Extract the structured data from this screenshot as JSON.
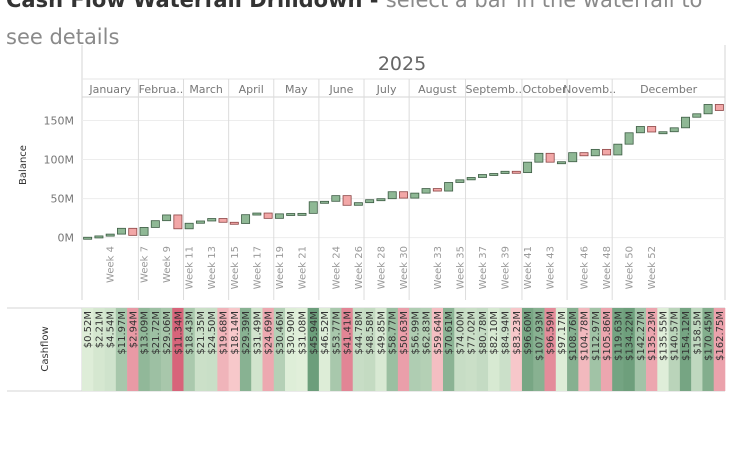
{
  "header": {
    "title_bold": "Cash Flow Waterfall Drilldown - ",
    "title_light": "select a bar in the waterfall to",
    "title_line2": "see details"
  },
  "colors": {
    "positive": "#8fb895",
    "negative": "#f2a7a7",
    "positive_stroke": "#3d5c44",
    "negative_stroke": "#8c4545"
  },
  "chart_data": {
    "type": "waterfall",
    "year": "2025",
    "ylabel": "Balance",
    "ylim": [
      -3,
      180
    ],
    "yticks": [
      {
        "value": 0,
        "label": "0M"
      },
      {
        "value": 50,
        "label": "50M"
      },
      {
        "value": 100,
        "label": "100M"
      },
      {
        "value": 150,
        "label": "150M"
      }
    ],
    "months": [
      "January",
      "Februa..",
      "March",
      "April",
      "May",
      "June",
      "July",
      "August",
      "Septemb..",
      "October",
      "Novemb..",
      "December"
    ],
    "cashflow_label": "Cashflow",
    "weeks": [
      {
        "week": 2,
        "month": 0,
        "label": "",
        "balance": 0.52,
        "cf_label": "$0.52M"
      },
      {
        "week": 3,
        "month": 0,
        "label": "",
        "balance": 2.21,
        "cf_label": "$2.21M"
      },
      {
        "week": 4,
        "month": 0,
        "label": "Week 4",
        "balance": 4.54,
        "cf_label": "$4.54M"
      },
      {
        "week": 5,
        "month": 0,
        "label": "",
        "balance": 11.97,
        "cf_label": "$11.97M"
      },
      {
        "week": 6,
        "month": 0,
        "label": "",
        "balance": 2.94,
        "cf_label": "$2.94M"
      },
      {
        "week": 7,
        "month": 1,
        "label": "Week 7",
        "balance": 13.09,
        "cf_label": "$13.09M"
      },
      {
        "week": 8,
        "month": 1,
        "label": "",
        "balance": 21.72,
        "cf_label": "$21.72M"
      },
      {
        "week": 9,
        "month": 1,
        "label": "Week 9",
        "balance": 29.06,
        "cf_label": "$29.06M"
      },
      {
        "week": 10,
        "month": 1,
        "label": "",
        "balance": 11.34,
        "cf_label": "$11.34M"
      },
      {
        "week": 11,
        "month": 2,
        "label": "Week 11",
        "balance": 18.43,
        "cf_label": "$18.43M"
      },
      {
        "week": 12,
        "month": 2,
        "label": "",
        "balance": 21.35,
        "cf_label": "$21.35M"
      },
      {
        "week": 13,
        "month": 2,
        "label": "Week 13",
        "balance": 24.5,
        "cf_label": "$24.50M"
      },
      {
        "week": 14,
        "month": 2,
        "label": "",
        "balance": 19.68,
        "cf_label": "$19.68M"
      },
      {
        "week": 15,
        "month": 3,
        "label": "Week 15",
        "balance": 18.14,
        "cf_label": "$18.14M"
      },
      {
        "week": 16,
        "month": 3,
        "label": "",
        "balance": 29.39,
        "cf_label": "$29.39M"
      },
      {
        "week": 17,
        "month": 3,
        "label": "Week 17",
        "balance": 31.49,
        "cf_label": "$31.49M"
      },
      {
        "week": 18,
        "month": 3,
        "label": "",
        "balance": 24.69,
        "cf_label": "$24.69M"
      },
      {
        "week": 19,
        "month": 4,
        "label": "Week 19",
        "balance": 30.46,
        "cf_label": "$30.46M"
      },
      {
        "week": 20,
        "month": 4,
        "label": "",
        "balance": 30.9,
        "cf_label": "$30.90M"
      },
      {
        "week": 21,
        "month": 4,
        "label": "Week 21",
        "balance": 31.08,
        "cf_label": "$31.08M"
      },
      {
        "week": 22,
        "month": 4,
        "label": "",
        "balance": 45.94,
        "cf_label": "$45.94M"
      },
      {
        "week": 23,
        "month": 5,
        "label": "",
        "balance": 46.52,
        "cf_label": "$46.52M"
      },
      {
        "week": 24,
        "month": 5,
        "label": "Week 24",
        "balance": 53.77,
        "cf_label": "$53.77M"
      },
      {
        "week": 25,
        "month": 5,
        "label": "",
        "balance": 41.41,
        "cf_label": "$41.41M"
      },
      {
        "week": 26,
        "month": 5,
        "label": "Week 26",
        "balance": 44.78,
        "cf_label": "$44.78M"
      },
      {
        "week": 27,
        "month": 6,
        "label": "",
        "balance": 48.58,
        "cf_label": "$48.58M"
      },
      {
        "week": 28,
        "month": 6,
        "label": "Week 28",
        "balance": 49.85,
        "cf_label": "$49.85M"
      },
      {
        "week": 29,
        "month": 6,
        "label": "",
        "balance": 58.77,
        "cf_label": "$58.77M"
      },
      {
        "week": 30,
        "month": 6,
        "label": "Week 30",
        "balance": 50.63,
        "cf_label": "$50.63M"
      },
      {
        "week": 31,
        "month": 7,
        "label": "",
        "balance": 56.99,
        "cf_label": "$56.99M"
      },
      {
        "week": 32,
        "month": 7,
        "label": "",
        "balance": 62.83,
        "cf_label": "$62.83M"
      },
      {
        "week": 33,
        "month": 7,
        "label": "Week 33",
        "balance": 59.64,
        "cf_label": "$59.64M"
      },
      {
        "week": 34,
        "month": 7,
        "label": "",
        "balance": 70.61,
        "cf_label": "$70.61M"
      },
      {
        "week": 35,
        "month": 7,
        "label": "Week 35",
        "balance": 74.0,
        "cf_label": "$74.00M"
      },
      {
        "week": 36,
        "month": 8,
        "label": "",
        "balance": 77.02,
        "cf_label": "$77.02M"
      },
      {
        "week": 37,
        "month": 8,
        "label": "Week 37",
        "balance": 80.78,
        "cf_label": "$80.78M"
      },
      {
        "week": 38,
        "month": 8,
        "label": "",
        "balance": 82.1,
        "cf_label": "$82.10M"
      },
      {
        "week": 39,
        "month": 8,
        "label": "Week 39",
        "balance": 84.94,
        "cf_label": "$84.94M"
      },
      {
        "week": 40,
        "month": 8,
        "label": "",
        "balance": 83.23,
        "cf_label": "$83.23M"
      },
      {
        "week": 41,
        "month": 9,
        "label": "Week 41",
        "balance": 96.6,
        "cf_label": "$96.60M"
      },
      {
        "week": 42,
        "month": 9,
        "label": "",
        "balance": 107.93,
        "cf_label": "$107.93M"
      },
      {
        "week": 43,
        "month": 9,
        "label": "Week 43",
        "balance": 96.59,
        "cf_label": "$96.59M"
      },
      {
        "week": 44,
        "month": 9,
        "label": "",
        "balance": 97.17,
        "cf_label": "$97.17M"
      },
      {
        "week": 45,
        "month": 10,
        "label": "",
        "balance": 108.76,
        "cf_label": "$108.76M"
      },
      {
        "week": 46,
        "month": 10,
        "label": "Week 46",
        "balance": 104.78,
        "cf_label": "$104.78M"
      },
      {
        "week": 47,
        "month": 10,
        "label": "",
        "balance": 112.97,
        "cf_label": "$112.97M"
      },
      {
        "week": 48,
        "month": 10,
        "label": "Week 48",
        "balance": 105.86,
        "cf_label": "$105.86M"
      },
      {
        "week": 49,
        "month": 11,
        "label": "",
        "balance": 119.63,
        "cf_label": "$119.63M"
      },
      {
        "week": 50,
        "month": 11,
        "label": "Week 50",
        "balance": 134.22,
        "cf_label": "$134.22M"
      },
      {
        "week": 51,
        "month": 11,
        "label": "",
        "balance": 142.27,
        "cf_label": "$142.27M"
      },
      {
        "week": 52,
        "month": 11,
        "label": "Week 52",
        "balance": 135.23,
        "cf_label": "$135.23M"
      },
      {
        "week": 53,
        "month": 11,
        "label": "",
        "balance": 135.55,
        "cf_label": "$135.55M"
      },
      {
        "week": 54,
        "month": 11,
        "label": "",
        "balance": 140.57,
        "cf_label": "$140.57M"
      },
      {
        "week": 55,
        "month": 11,
        "label": "",
        "balance": 154.12,
        "cf_label": "$154.12M"
      },
      {
        "week": 56,
        "month": 11,
        "label": "",
        "balance": 158.5,
        "cf_label": "$158.5M"
      },
      {
        "week": 57,
        "month": 11,
        "label": "",
        "balance": 170.45,
        "cf_label": "$170.45M"
      },
      {
        "week": 58,
        "month": 11,
        "label": "",
        "balance": 162.75,
        "cf_label": "$162.75M"
      }
    ]
  }
}
